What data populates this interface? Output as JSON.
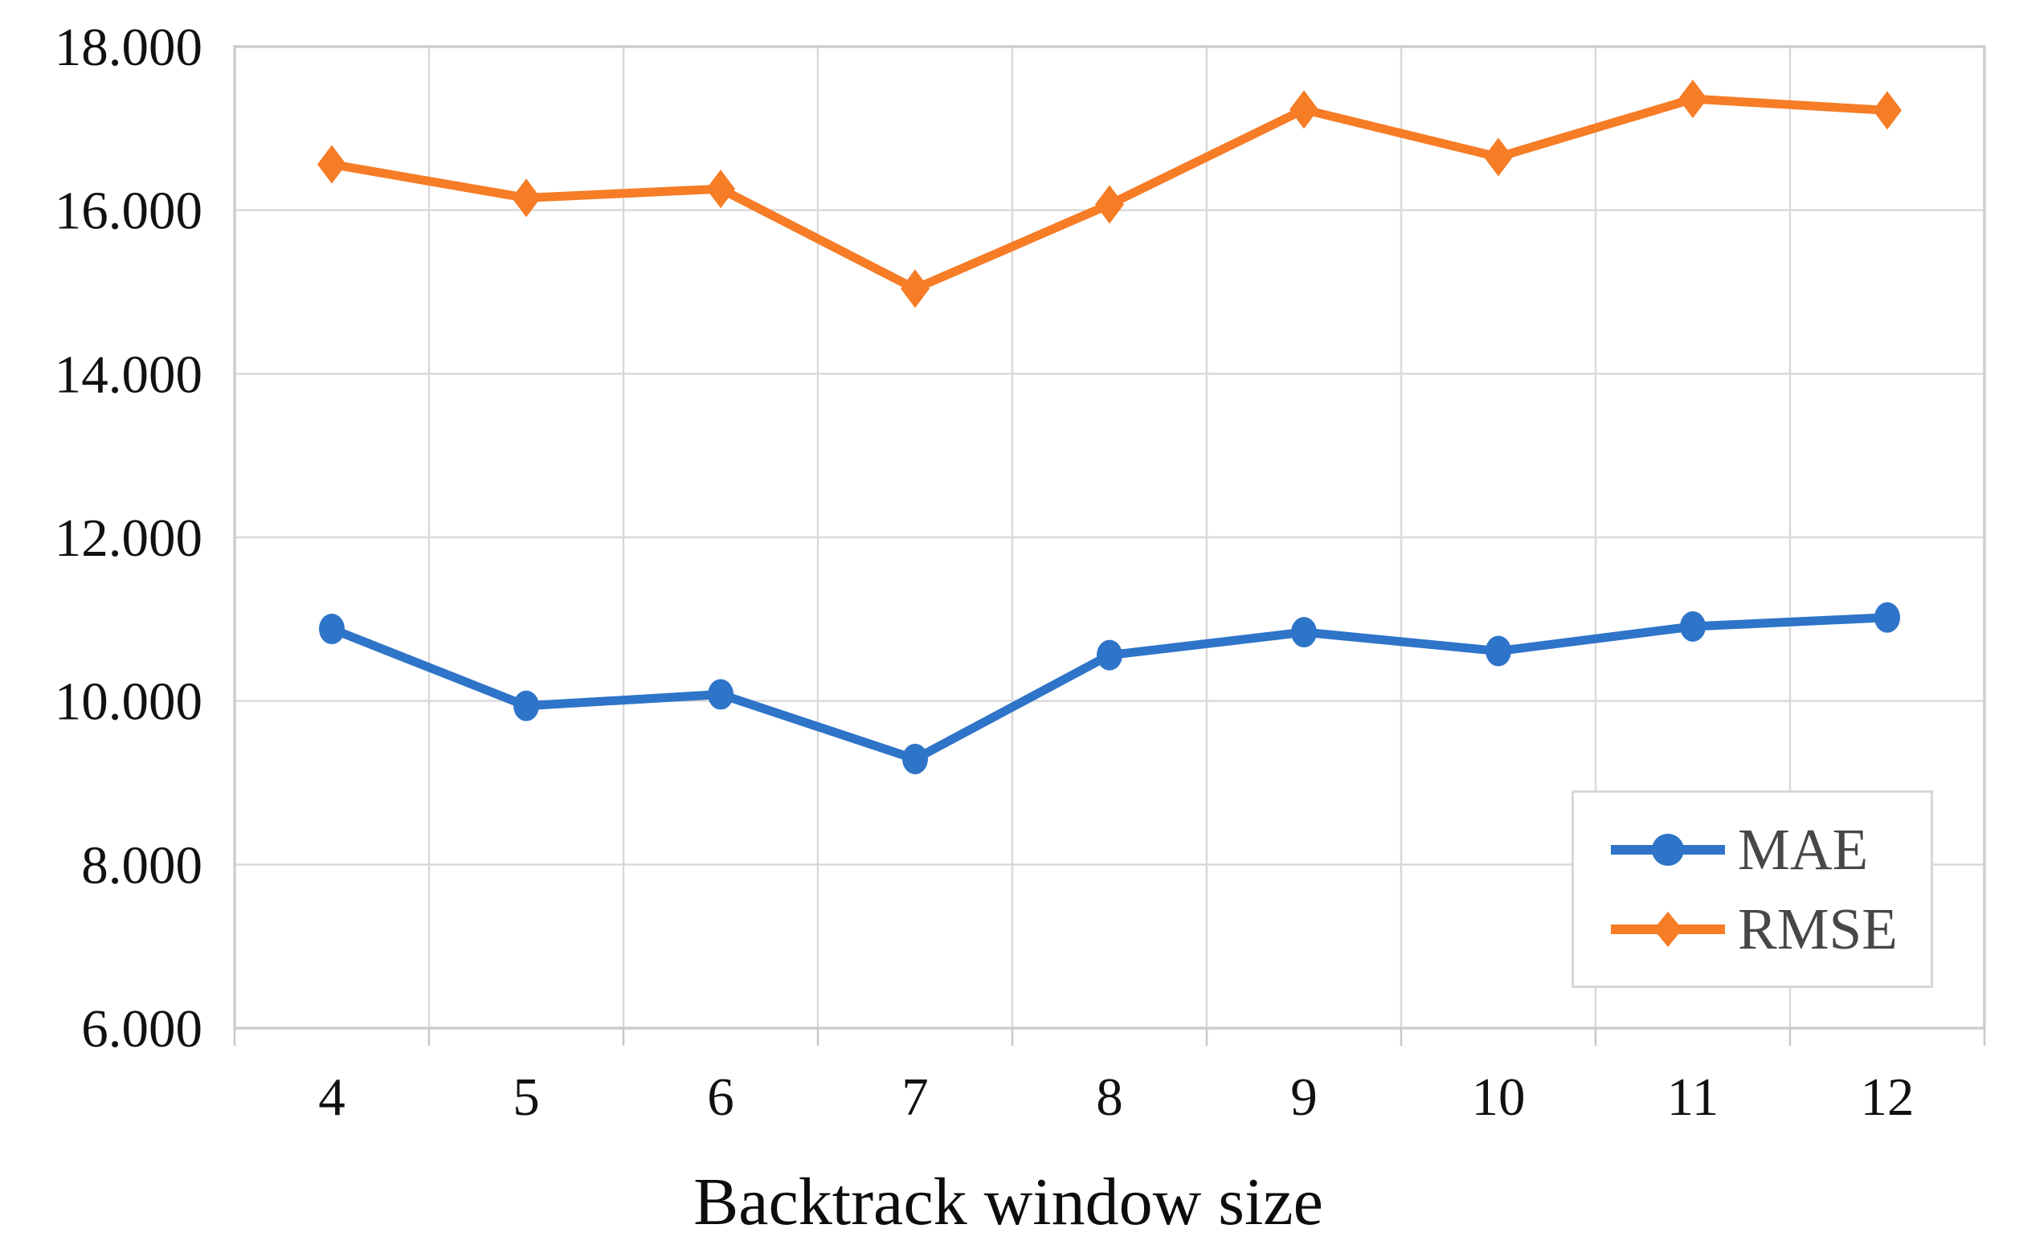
{
  "chart_data": {
    "type": "line",
    "title": "",
    "xlabel": "Backtrack window size",
    "ylabel": "",
    "categories": [
      "4",
      "5",
      "6",
      "7",
      "8",
      "9",
      "10",
      "11",
      "12"
    ],
    "series": [
      {
        "name": "MAE",
        "color": "#2E74C8",
        "marker": "circle",
        "values": [
          10.88,
          9.94,
          10.08,
          9.29,
          10.56,
          10.84,
          10.61,
          10.91,
          11.02
        ]
      },
      {
        "name": "RMSE",
        "color": "#F67C26",
        "marker": "diamond",
        "values": [
          16.56,
          16.15,
          16.26,
          15.04,
          16.07,
          17.23,
          16.65,
          17.36,
          17.22
        ]
      }
    ],
    "y_axis": {
      "min": 6,
      "max": 18,
      "tick_step": 2,
      "tick_labels": [
        "6.000",
        "8.000",
        "10.000",
        "12.000",
        "14.000",
        "16.000",
        "18.000"
      ]
    },
    "x_axis": {
      "tick_labels": [
        "4",
        "5",
        "6",
        "7",
        "8",
        "9",
        "10",
        "11",
        "12"
      ]
    },
    "grid": {
      "horizontal": true,
      "vertical": true,
      "color": "#D9D9D9"
    },
    "plot_border_color": "#CDCDCD",
    "legend": {
      "position": "inside-bottom-right",
      "items": [
        "MAE",
        "RMSE"
      ]
    }
  }
}
